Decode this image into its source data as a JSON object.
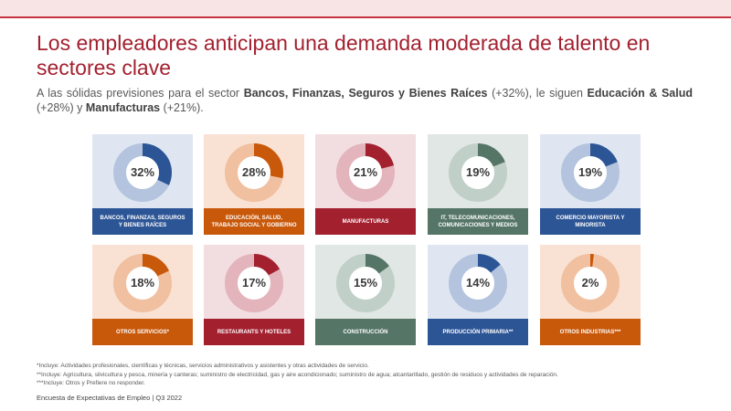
{
  "header": {
    "title_line1": "Los empleadores anticipan una demanda moderada de talento en",
    "title_line2": "sectores clave",
    "subtitle_parts": {
      "p1": "A las sólidas previsiones para el sector ",
      "b1": "Bancos, Finanzas, Seguros y Bienes Raíces",
      "p2": " (+32%), le siguen ",
      "b2": "Educación & Salud",
      "p3": " (+28%) y ",
      "b3": "Manufacturas",
      "p4": " (+21%)."
    }
  },
  "cards": [
    {
      "pct_label": "32%",
      "value": 32,
      "label_l1": "BANCOS, FINANZAS, SEGUROS",
      "label_l2": "Y BIENES RAÍCES",
      "bg": "#dfe6f1",
      "ring": "#b4c4de",
      "arc": "#2c5596",
      "bar": "#2c5596"
    },
    {
      "pct_label": "28%",
      "value": 28,
      "label_l1": "EDUCACIÓN, SALUD,",
      "label_l2": "TRABAJO SOCIAL Y GOBIERNO",
      "bg": "#f9e2d3",
      "ring": "#f0c0a0",
      "arc": "#c8580a",
      "bar": "#c8580a"
    },
    {
      "pct_label": "21%",
      "value": 21,
      "label_l1": "MANUFACTURAS",
      "label_l2": "",
      "bg": "#f2dde0",
      "ring": "#e3b4bb",
      "arc": "#a3202f",
      "bar": "#a3202f"
    },
    {
      "pct_label": "19%",
      "value": 19,
      "label_l1": "IT, TELECOMUNICACIONES,",
      "label_l2": "COMUNICACIONES Y MEDIOS",
      "bg": "#e1e7e4",
      "ring": "#c1cfc9",
      "arc": "#557567",
      "bar": "#557567"
    },
    {
      "pct_label": "19%",
      "value": 19,
      "label_l1": "COMERCIO MAYORISTA Y",
      "label_l2": "MINORISTA",
      "bg": "#dfe6f1",
      "ring": "#b4c4de",
      "arc": "#2c5596",
      "bar": "#2c5596"
    },
    {
      "pct_label": "18%",
      "value": 18,
      "label_l1": "OTROS SERVICIOS*",
      "label_l2": "",
      "bg": "#f9e2d3",
      "ring": "#f0c0a0",
      "arc": "#c8580a",
      "bar": "#c8580a"
    },
    {
      "pct_label": "17%",
      "value": 17,
      "label_l1": "RESTAURANTS Y HOTELES",
      "label_l2": "",
      "bg": "#f2dde0",
      "ring": "#e3b4bb",
      "arc": "#a3202f",
      "bar": "#a3202f"
    },
    {
      "pct_label": "15%",
      "value": 15,
      "label_l1": "CONSTRUCCIÓN",
      "label_l2": "",
      "bg": "#e1e7e4",
      "ring": "#c1cfc9",
      "arc": "#557567",
      "bar": "#557567"
    },
    {
      "pct_label": "14%",
      "value": 14,
      "label_l1": "PRODUCCIÓN PRIMARIA**",
      "label_l2": "",
      "bg": "#dfe6f1",
      "ring": "#b4c4de",
      "arc": "#2c5596",
      "bar": "#2c5596"
    },
    {
      "pct_label": "2%",
      "value": 2,
      "label_l1": "OTROS INDUSTRIAS***",
      "label_l2": "",
      "bg": "#f9e2d3",
      "ring": "#f0c0a0",
      "arc": "#c8580a",
      "bar": "#c8580a"
    }
  ],
  "footnotes": {
    "n1": "*Incluye: Actividades profesionales, científicas y técnicas, servicios administrativos y asistentes y otras actividades de servicio.",
    "n2": "**Incluye: Agricultura, silvicultura y pesca, minería y canteras; suministro de electricidad, gas y aire acondicionado; suministro de agua; alcantarillado, gestión de residuos y actividades de reparación.",
    "n3": "***Incluye: Otros y Prefiere no responder."
  },
  "footer": {
    "text": "Encuesta de Expectativas de Empleo | Q3 2022"
  }
}
